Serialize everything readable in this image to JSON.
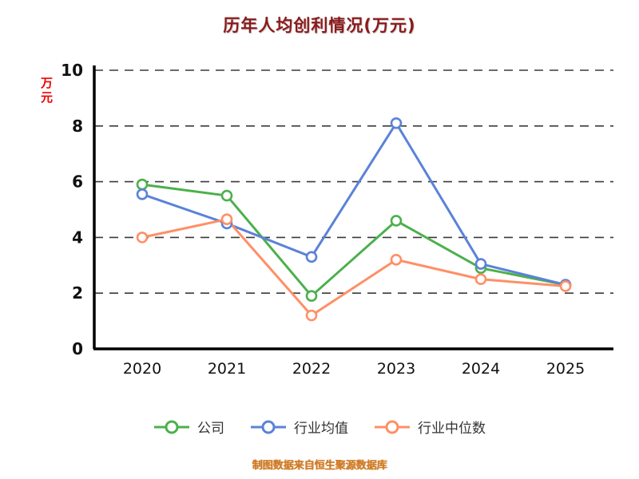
{
  "title": "历年人均创利情况(万元)",
  "y_axis_label": "万元",
  "footer": "制图数据来自恒生聚源数据库",
  "chart_data": {
    "type": "line",
    "title": "历年人均创利情况(万元)",
    "xlabel": "",
    "ylabel": "万元",
    "x": [
      "2020",
      "2021",
      "2022",
      "2023",
      "2024",
      "2025"
    ],
    "series": [
      {
        "name": "公司",
        "color": "#4cb04c",
        "values": [
          5.9,
          5.5,
          1.9,
          4.6,
          2.9,
          2.3
        ]
      },
      {
        "name": "行业均值",
        "color": "#5b82d8",
        "values": [
          5.55,
          4.5,
          3.3,
          8.1,
          3.05,
          2.3
        ]
      },
      {
        "name": "行业中位数",
        "color": "#ff8f66",
        "values": [
          4.0,
          4.65,
          1.2,
          3.2,
          2.5,
          2.25
        ]
      }
    ],
    "ylim": [
      0,
      10
    ],
    "yticks": [
      0,
      2,
      4,
      6,
      8,
      10
    ],
    "grid": "horizontal-dashed",
    "legend_position": "bottom",
    "marker": "open-circle"
  },
  "colors": {
    "title": "#8b1a1a",
    "ylabel": "#ee0000",
    "axis": "#000000",
    "gridline": "#3a3a3a",
    "tick_text": "#111111",
    "footer": "#d2781e"
  }
}
